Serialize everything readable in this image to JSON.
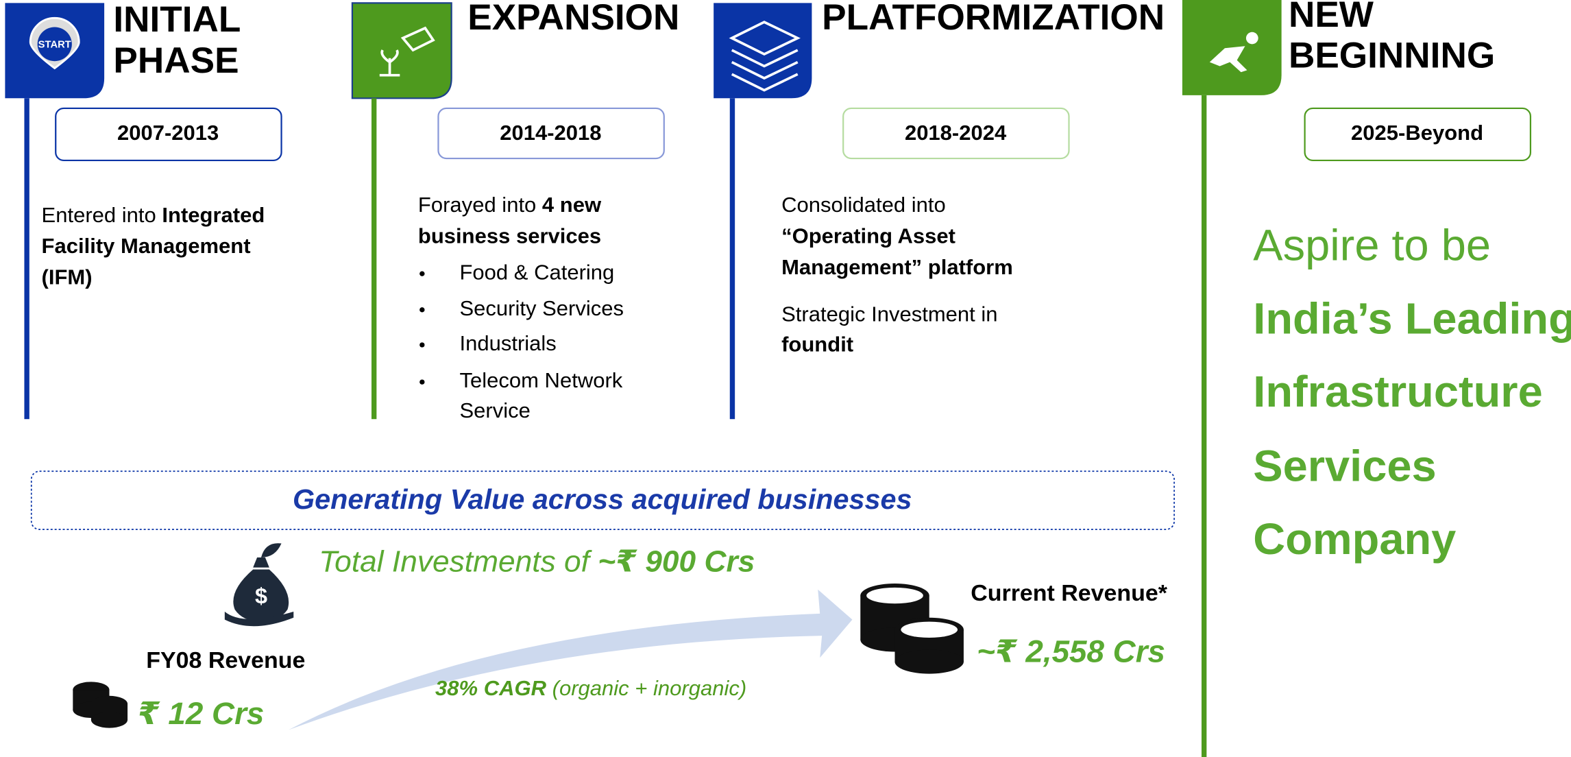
{
  "phases": [
    {
      "icon_text": "START",
      "title": [
        "INITIAL",
        "PHASE"
      ],
      "years": "2007-2013",
      "lines": [
        {
          "text": "Entered into ",
          "bold": "Integrated"
        },
        {
          "bold": "Facility Management"
        },
        {
          "bold": "(IFM)"
        }
      ]
    },
    {
      "title": [
        "EXPANSION"
      ],
      "years": "2014-2018",
      "lines": [
        {
          "text": "Forayed into ",
          "bold": "4 new"
        },
        {
          "bold": "business  services"
        }
      ],
      "bullets": [
        [
          "Food & Catering"
        ],
        [
          "Security Services"
        ],
        [
          "Industrials"
        ],
        [
          "Telecom Network",
          "Service"
        ]
      ]
    },
    {
      "title": [
        "PLATFORMIZATION"
      ],
      "years": "2018-2024",
      "lines": [
        {
          "text": "Consolidated into"
        },
        {
          "bold": "“Operating Asset"
        },
        {
          "bold": "Management” platform"
        },
        {
          "text": "Strategic Investment in"
        },
        {
          "bold": "foundit"
        }
      ]
    },
    {
      "title": [
        "NEW",
        "BEGINNING"
      ],
      "years": "2025-Beyond"
    }
  ],
  "aspire": {
    "text": "Aspire to be",
    "bold": [
      "India’s Leading",
      "Infrastructure",
      "Services",
      "Company"
    ]
  },
  "banner": "Generating Value across acquired businesses",
  "investment": {
    "text": "Total Investments of ",
    "bold": "~₹ 900 Crs"
  },
  "fy08": {
    "label": "FY08 Revenue",
    "value": "₹ 12 Crs"
  },
  "current": {
    "label": "Current Revenue*",
    "value": "~₹ 2,558 Crs"
  },
  "cagr": {
    "bold": "38% CAGR",
    "text": " (organic + inorganic)"
  }
}
